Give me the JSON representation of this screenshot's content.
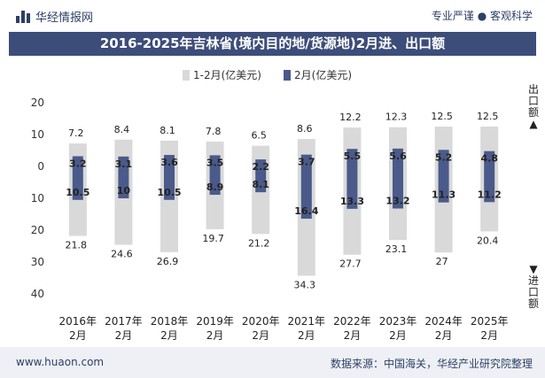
{
  "header": {
    "brand": "华经情报网",
    "right_text": "专业严谨 ● 客观科学"
  },
  "title": "2016-2025年吉林省(境内目的地/货源地)2月进、出口额",
  "footer": {
    "left": "www.huaon.com",
    "right": "数据来源：中国海关，华经产业研究院整理"
  },
  "side_labels": {
    "top": "出口额▲",
    "bottom": "▼进口额"
  },
  "colors": {
    "light_bar": "#d9d9d9",
    "dark_bar": "#4a5a8a",
    "title_bg": "#3d4d7a"
  },
  "chart_data": {
    "type": "bar",
    "categories": [
      "2016年\n2月",
      "2017年\n2月",
      "2018年\n2月",
      "2019年\n2月",
      "2020年\n2月",
      "2021年\n2月",
      "2022年\n2月",
      "2023年\n2月",
      "2024年\n2月",
      "2025年\n2月"
    ],
    "y_tick_labels": [
      "20",
      "10",
      "0",
      "10",
      "20",
      "30",
      "40"
    ],
    "y_tick_values": [
      20,
      10,
      0,
      -10,
      -20,
      -30,
      -40
    ],
    "ylim": [
      -40,
      20
    ],
    "series": [
      {
        "name": "1-2月(亿美元)",
        "export": [
          7.2,
          8.4,
          8.1,
          7.8,
          6.5,
          8.6,
          12.2,
          12.3,
          12.5,
          12.5
        ],
        "import": [
          21.8,
          24.6,
          26.9,
          19.7,
          21.2,
          34.3,
          27.7,
          23.1,
          27,
          20.4
        ]
      },
      {
        "name": "2月(亿美元)",
        "export": [
          3.2,
          3.1,
          3.6,
          3.5,
          2.2,
          3.7,
          5.5,
          5.6,
          5.2,
          4.8
        ],
        "import": [
          10.5,
          10,
          10.5,
          8.9,
          8.1,
          16.4,
          13.3,
          13.2,
          11.3,
          11.2
        ]
      }
    ],
    "legend_position": "top-center"
  }
}
